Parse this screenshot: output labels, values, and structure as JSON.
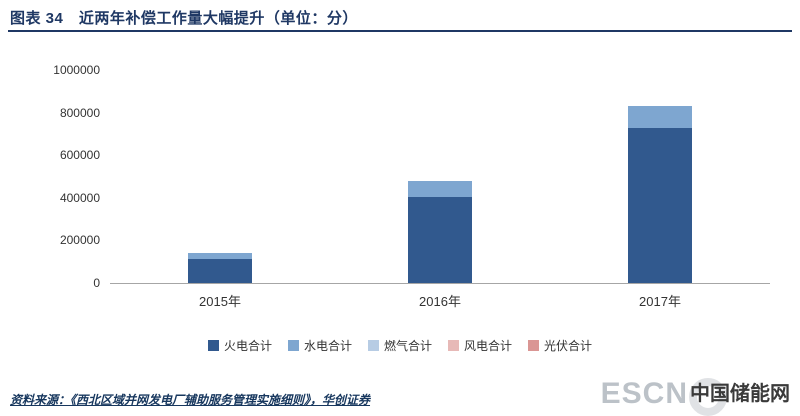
{
  "header": {
    "title": "图表 34　近两年补偿工作量大幅提升（单位：分）"
  },
  "chart_data": {
    "type": "bar",
    "stacked": true,
    "title": "近两年补偿工作量大幅提升（单位：分）",
    "categories": [
      "2015年",
      "2016年",
      "2017年"
    ],
    "series": [
      {
        "name": "火电合计",
        "color": "#31598E",
        "values": [
          115000,
          405000,
          730000
        ]
      },
      {
        "name": "水电合计",
        "color": "#7EA6D0",
        "values": [
          25000,
          75000,
          100000
        ]
      },
      {
        "name": "燃气合计",
        "color": "#B7CCE4",
        "values": [
          0,
          0,
          0
        ]
      },
      {
        "name": "风电合计",
        "color": "#E7B9B7",
        "values": [
          0,
          0,
          0
        ]
      },
      {
        "name": "光伏合计",
        "color": "#DA9694",
        "values": [
          0,
          0,
          0
        ]
      }
    ],
    "ylim": [
      0,
      1000000
    ],
    "ytick_step": 200000,
    "yticks": [
      "0",
      "200000",
      "400000",
      "600000",
      "800000",
      "1000000"
    ],
    "legend_position": "bottom",
    "grid": false
  },
  "footer": {
    "source": "资料来源：《西北区域并网发电厂辅助服务管理实施细则》，华创证券",
    "logo": {
      "escn": "ESCN",
      "site": "中国储能网"
    }
  },
  "colors": {
    "accent": "#1F3864",
    "axis": "#A6A6A6"
  }
}
